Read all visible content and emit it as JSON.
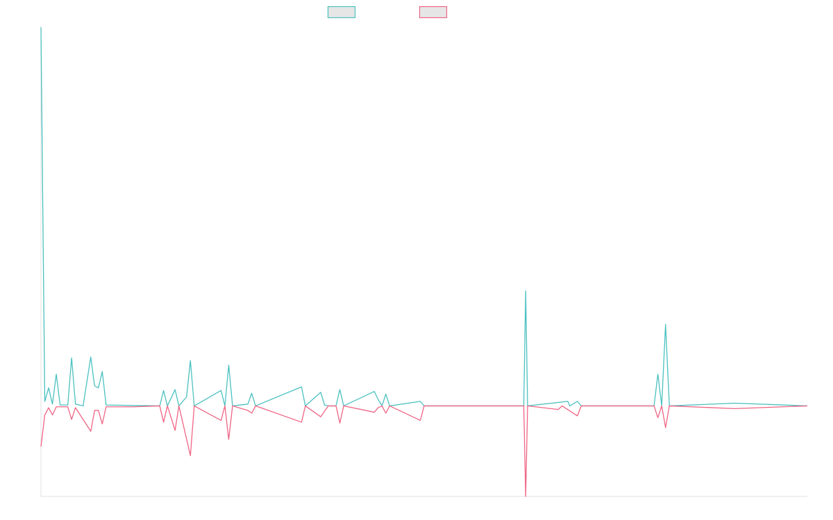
{
  "chart_data": {
    "type": "line",
    "title": "",
    "xlabel": "",
    "ylabel": "",
    "grid": false,
    "legend_placement": "top-center",
    "x_count": 201,
    "ylim": [
      -1.0,
      4.2
    ],
    "series": [
      {
        "color": "#4bc0c0",
        "fill": "#e6e6e6",
        "points": [
          [
            0,
            4.18
          ],
          [
            1,
            0.05
          ],
          [
            2,
            0.2
          ],
          [
            3,
            0.02
          ],
          [
            4,
            0.35
          ],
          [
            5,
            0.01
          ],
          [
            7,
            0.01
          ],
          [
            8,
            0.53
          ],
          [
            9,
            0.02
          ],
          [
            10,
            0.01
          ],
          [
            11,
            0.0
          ],
          [
            13,
            0.54
          ],
          [
            14,
            0.22
          ],
          [
            15,
            0.2
          ],
          [
            16,
            0.38
          ],
          [
            17,
            0.01
          ],
          [
            31,
            0.0
          ],
          [
            32,
            0.17
          ],
          [
            33,
            0.0
          ],
          [
            35,
            0.18
          ],
          [
            36,
            0.0
          ],
          [
            38,
            0.1
          ],
          [
            39,
            0.5
          ],
          [
            40,
            0.0
          ],
          [
            47,
            0.17
          ],
          [
            48,
            0.0
          ],
          [
            49,
            0.45
          ],
          [
            50,
            0.0
          ],
          [
            54,
            0.02
          ],
          [
            55,
            0.14
          ],
          [
            56,
            0.0
          ],
          [
            68,
            0.21
          ],
          [
            69,
            0.0
          ],
          [
            73,
            0.15
          ],
          [
            74,
            0.01
          ],
          [
            75,
            0.0
          ],
          [
            77,
            0.0
          ],
          [
            78,
            0.18
          ],
          [
            79,
            0.0
          ],
          [
            87,
            0.16
          ],
          [
            88,
            0.07
          ],
          [
            89,
            0.0
          ],
          [
            90,
            0.13
          ],
          [
            91,
            0.0
          ],
          [
            99,
            0.05
          ],
          [
            100,
            0.0
          ],
          [
            126,
            0.0
          ],
          [
            126.5,
            1.27
          ],
          [
            127,
            0.0
          ],
          [
            137.5,
            0.05
          ],
          [
            138,
            0.0
          ],
          [
            140,
            0.05
          ],
          [
            141,
            0.0
          ],
          [
            160,
            0.0
          ],
          [
            161,
            0.35
          ],
          [
            162,
            0.0
          ],
          [
            163,
            0.9
          ],
          [
            164,
            0.0
          ],
          [
            181,
            0.03
          ],
          [
            200,
            0.0
          ]
        ]
      },
      {
        "color": "#f06484",
        "fill": "#e6e6e6",
        "points": [
          [
            0,
            -0.45
          ],
          [
            1,
            -0.1
          ],
          [
            2,
            -0.02
          ],
          [
            3,
            -0.1
          ],
          [
            4,
            -0.01
          ],
          [
            7,
            -0.01
          ],
          [
            8,
            -0.15
          ],
          [
            9,
            -0.02
          ],
          [
            13,
            -0.28
          ],
          [
            14,
            -0.05
          ],
          [
            15,
            -0.05
          ],
          [
            16,
            -0.2
          ],
          [
            17,
            -0.01
          ],
          [
            24,
            -0.01
          ],
          [
            31,
            -0.0
          ],
          [
            32,
            -0.18
          ],
          [
            33,
            0.0
          ],
          [
            35,
            -0.27
          ],
          [
            36,
            0.0
          ],
          [
            39,
            -0.55
          ],
          [
            40,
            0.0
          ],
          [
            47,
            -0.16
          ],
          [
            48,
            0.0
          ],
          [
            49,
            -0.37
          ],
          [
            50,
            0.0
          ],
          [
            54,
            -0.05
          ],
          [
            55,
            -0.08
          ],
          [
            56,
            0.0
          ],
          [
            68,
            -0.18
          ],
          [
            69,
            0.0
          ],
          [
            73,
            -0.12
          ],
          [
            74,
            -0.06
          ],
          [
            75,
            0.0
          ],
          [
            77,
            0.0
          ],
          [
            78,
            -0.19
          ],
          [
            79,
            0.0
          ],
          [
            87,
            -0.07
          ],
          [
            88,
            -0.02
          ],
          [
            89,
            0.0
          ],
          [
            90,
            -0.08
          ],
          [
            91,
            0.0
          ],
          [
            99,
            -0.16
          ],
          [
            100,
            0.0
          ],
          [
            126,
            0.0
          ],
          [
            126.5,
            -1.0
          ],
          [
            127,
            0.0
          ],
          [
            135,
            -0.04
          ],
          [
            136,
            0.0
          ],
          [
            140,
            -0.11
          ],
          [
            141,
            0.0
          ],
          [
            160,
            0.0
          ],
          [
            161,
            -0.13
          ],
          [
            162,
            0.0
          ],
          [
            163,
            -0.24
          ],
          [
            164,
            0.0
          ],
          [
            181,
            -0.03
          ],
          [
            200,
            0.0
          ]
        ]
      }
    ]
  }
}
